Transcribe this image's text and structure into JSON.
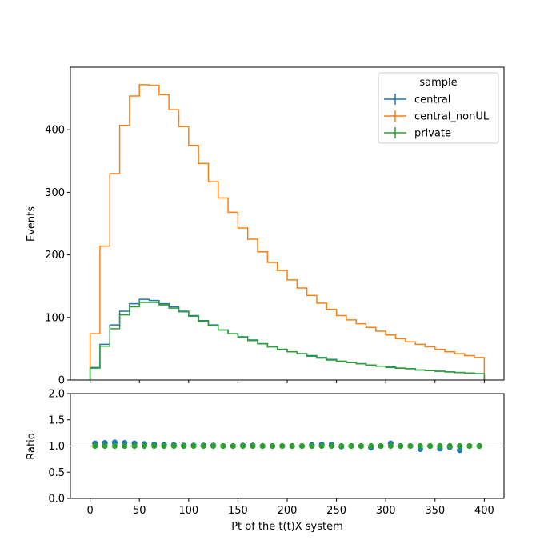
{
  "chart_data": {
    "type": "step",
    "title": "",
    "xlabel": "Pt of the t(t)X system",
    "xlim": [
      -20,
      420
    ],
    "x_ticks": [
      0,
      50,
      100,
      150,
      200,
      250,
      300,
      350,
      400
    ],
    "bin_edges": [
      0,
      10,
      20,
      30,
      40,
      50,
      60,
      70,
      80,
      90,
      100,
      110,
      120,
      130,
      140,
      150,
      160,
      170,
      180,
      190,
      200,
      210,
      220,
      230,
      240,
      250,
      260,
      270,
      280,
      290,
      300,
      310,
      320,
      330,
      340,
      350,
      360,
      370,
      380,
      390,
      400
    ],
    "top_panel": {
      "ylabel": "Events",
      "ylim": [
        0,
        500
      ],
      "y_ticks": [
        0,
        100,
        200,
        300,
        400
      ],
      "series": [
        {
          "name": "central",
          "color": "#1f77b4",
          "values": [
            20,
            57,
            88,
            110,
            122,
            129,
            127,
            122,
            117,
            110,
            103,
            95,
            88,
            80,
            74,
            69,
            64,
            58,
            53,
            49,
            45,
            42,
            39,
            36,
            33,
            30,
            28,
            26,
            24,
            22,
            21,
            19,
            18,
            16,
            15,
            14,
            13,
            12,
            11,
            10
          ]
        },
        {
          "name": "central_nonUL",
          "color": "#ff7f0e",
          "values": [
            74,
            214,
            330,
            407,
            454,
            472,
            471,
            456,
            432,
            405,
            375,
            346,
            317,
            291,
            268,
            243,
            225,
            205,
            188,
            175,
            160,
            147,
            135,
            123,
            113,
            103,
            96,
            90,
            84,
            78,
            72,
            66,
            61,
            57,
            53,
            49,
            45,
            42,
            39,
            36
          ]
        },
        {
          "name": "private",
          "color": "#2ca02c",
          "values": [
            19,
            54,
            82,
            104,
            117,
            124,
            124,
            120,
            115,
            109,
            102,
            94,
            87,
            80,
            74,
            68,
            63,
            58,
            53,
            49,
            45,
            42,
            38,
            35,
            32,
            30,
            28,
            26,
            24,
            22,
            20,
            19,
            18,
            16,
            15,
            14,
            13,
            12,
            11,
            10
          ]
        }
      ],
      "legend": {
        "title": "sample",
        "placement": "top-right"
      }
    },
    "ratio_panel": {
      "ylabel": "Ratio",
      "ylim": [
        0.0,
        2.0
      ],
      "y_ticks": [
        "0.0",
        "0.5",
        "1.0",
        "1.5",
        "2.0"
      ],
      "reference_line": 1.0,
      "series": [
        {
          "name": "central",
          "color": "#1f77b4",
          "values": [
            1.05,
            1.06,
            1.07,
            1.06,
            1.05,
            1.04,
            1.03,
            1.02,
            1.02,
            1.01,
            1.01,
            1.01,
            1.01,
            1.0,
            1.0,
            1.01,
            1.01,
            1.0,
            1.0,
            1.0,
            1.0,
            1.0,
            1.02,
            1.03,
            1.03,
            0.99,
            1.0,
            1.0,
            0.97,
            1.0,
            1.05,
            1.0,
            1.0,
            0.94,
            1.0,
            0.95,
            0.98,
            0.92,
            1.0,
            1.0
          ]
        },
        {
          "name": "private",
          "color": "#2ca02c",
          "values": [
            1.0,
            1.0,
            1.0,
            1.0,
            1.0,
            1.0,
            1.0,
            1.0,
            1.0,
            1.0,
            1.0,
            1.0,
            1.0,
            1.0,
            1.0,
            1.0,
            1.0,
            1.0,
            1.0,
            1.0,
            1.0,
            1.0,
            1.0,
            1.0,
            1.0,
            1.0,
            1.0,
            1.0,
            1.0,
            1.0,
            1.0,
            1.0,
            1.0,
            1.0,
            1.0,
            1.0,
            1.0,
            1.0,
            1.0,
            1.0
          ]
        }
      ]
    }
  }
}
